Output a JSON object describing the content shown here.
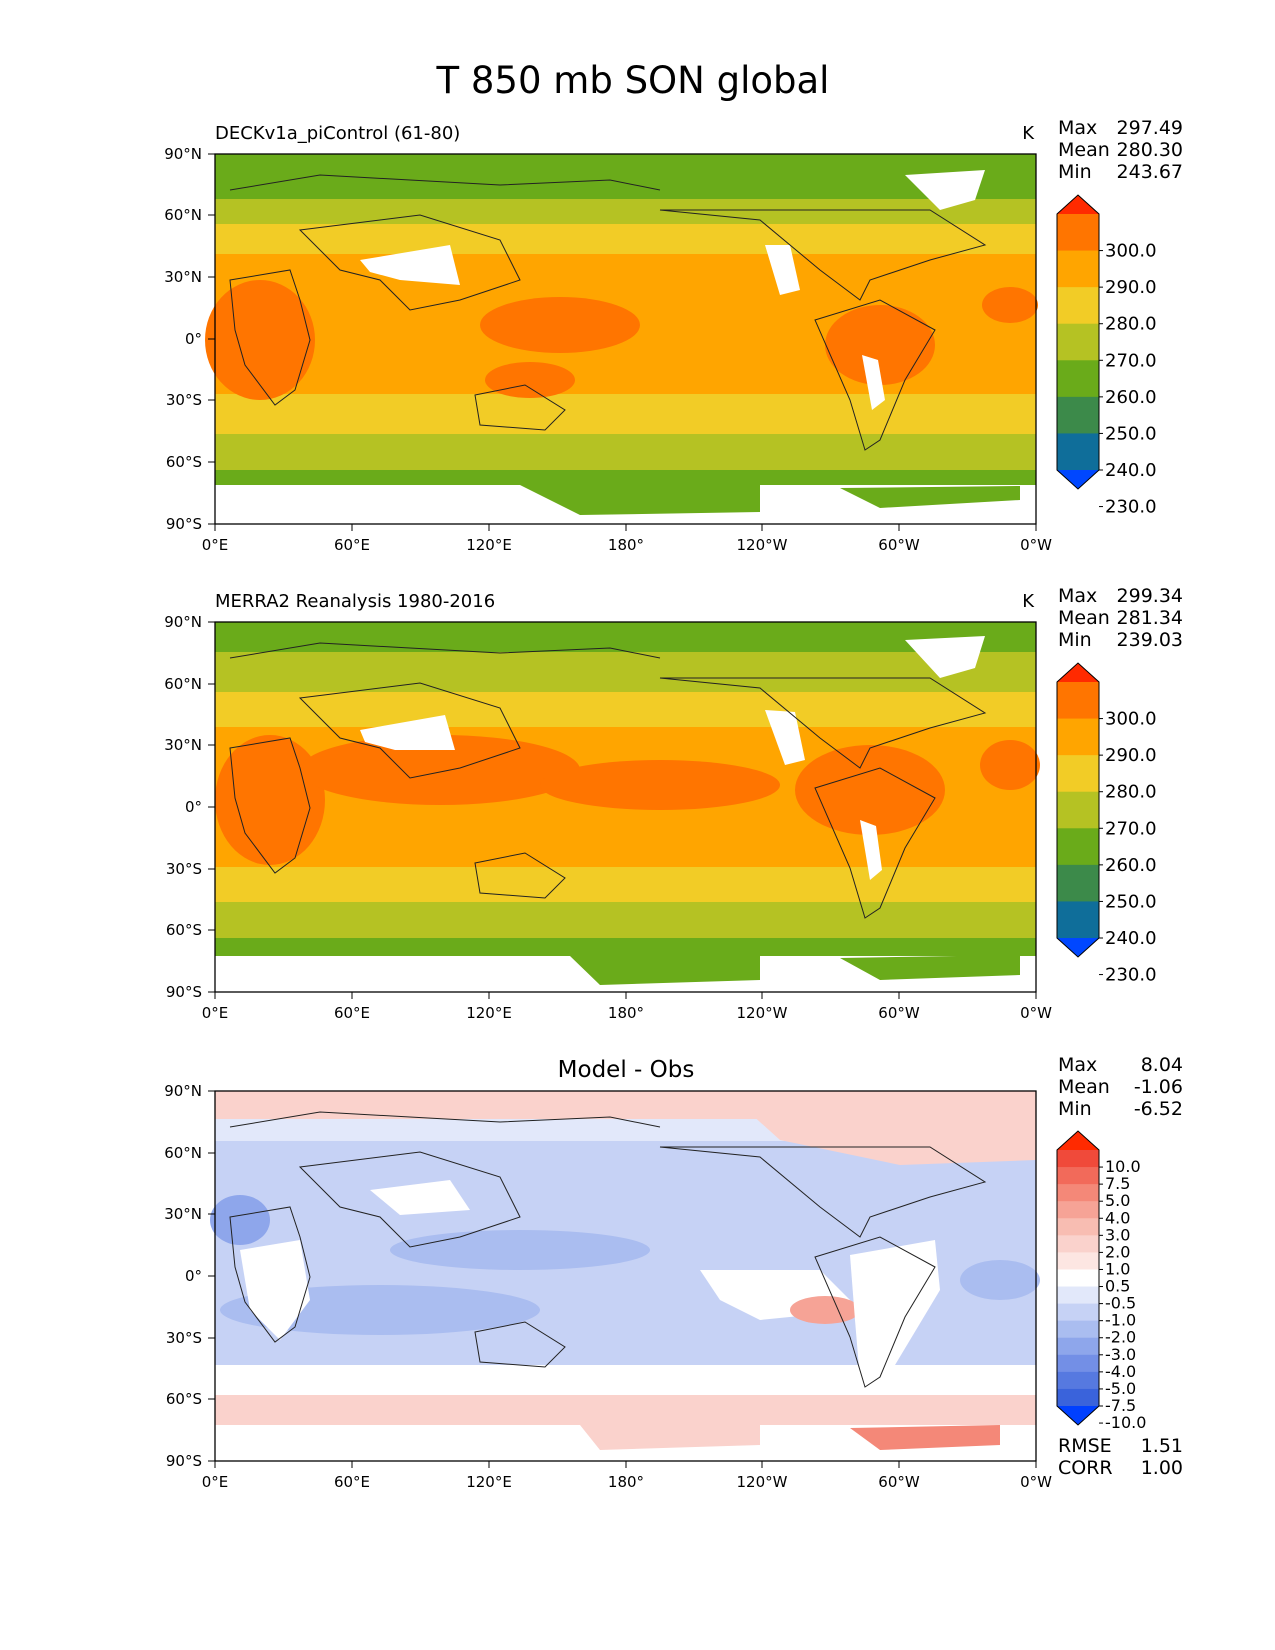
{
  "figure_title": "T 850 mb SON global",
  "lon_labels": [
    "0°E",
    "60°E",
    "120°E",
    "180°",
    "120°W",
    "60°W",
    "0°W"
  ],
  "lat_labels": [
    "90°N",
    "60°N",
    "30°N",
    "0°",
    "30°S",
    "60°S",
    "90°S"
  ],
  "abs_colorbar": {
    "levels": [
      "300.0",
      "290.0",
      "280.0",
      "270.0",
      "260.0",
      "250.0",
      "240.0",
      "230.0"
    ],
    "colors": [
      "#ff2a00",
      "#ff7500",
      "#ffa500",
      "#f2cc26",
      "#b5c223",
      "#6aab1a",
      "#3c8a4a",
      "#0f6e9a",
      "#0047ff"
    ]
  },
  "diff_colorbar": {
    "levels": [
      "10.0",
      "7.5",
      "5.0",
      "4.0",
      "3.0",
      "2.0",
      "1.0",
      "0.5",
      "-0.5",
      "-1.0",
      "-2.0",
      "-3.0",
      "-4.0",
      "-5.0",
      "-7.5",
      "-10.0"
    ],
    "colors": [
      "#ff2a00",
      "#f04a3a",
      "#f26a5a",
      "#f48878",
      "#f6a396",
      "#f8bdb2",
      "#fad2cc",
      "#fde6e2",
      "#ffffff",
      "#e2e8fa",
      "#c6d2f5",
      "#aabdf0",
      "#8ea6eb",
      "#738fe6",
      "#5679e0",
      "#3a63db",
      "#0040ff"
    ]
  },
  "chart_data": [
    {
      "type": "heatmap",
      "title": "DECKv1a_piControl (61-80)",
      "units": "K",
      "stats": {
        "max_label": "Max",
        "max": "297.49",
        "mean_label": "Mean",
        "mean": "280.30",
        "min_label": "Min",
        "min": "243.67"
      },
      "lon_range": [
        0,
        360
      ],
      "lat_range": [
        -90,
        90
      ],
      "zonal_bands": [
        {
          "lat": [
            70,
            90
          ],
          "value": 255
        },
        {
          "lat": [
            55,
            70
          ],
          "value": 265
        },
        {
          "lat": [
            40,
            55
          ],
          "value": 275
        },
        {
          "lat": [
            -20,
            40
          ],
          "value": 285
        },
        {
          "lat": [
            -40,
            -20
          ],
          "value": 275
        },
        {
          "lat": [
            -55,
            -40
          ],
          "value": 265
        },
        {
          "lat": [
            -70,
            -55
          ],
          "value": 255
        }
      ]
    },
    {
      "type": "heatmap",
      "title": "MERRA2 Reanalysis 1980-2016",
      "units": "K",
      "stats": {
        "max_label": "Max",
        "max": "299.34",
        "mean_label": "Mean",
        "mean": "281.34",
        "min_label": "Min",
        "min": "239.03"
      },
      "lon_range": [
        0,
        360
      ],
      "lat_range": [
        -90,
        90
      ],
      "zonal_bands": [
        {
          "lat": [
            70,
            90
          ],
          "value": 255
        },
        {
          "lat": [
            55,
            70
          ],
          "value": 265
        },
        {
          "lat": [
            40,
            55
          ],
          "value": 275
        },
        {
          "lat": [
            -20,
            40
          ],
          "value": 288
        },
        {
          "lat": [
            -40,
            -20
          ],
          "value": 275
        },
        {
          "lat": [
            -55,
            -40
          ],
          "value": 265
        },
        {
          "lat": [
            -70,
            -55
          ],
          "value": 255
        }
      ]
    },
    {
      "type": "heatmap",
      "title": "Model - Obs",
      "units": "",
      "stats": {
        "max_label": "Max",
        "max": "8.04",
        "mean_label": "Mean",
        "mean": "-1.06",
        "min_label": "Min",
        "min": "-6.52",
        "rmse_label": "RMSE",
        "rmse": "1.51",
        "corr_label": "CORR",
        "corr": "1.00"
      },
      "lon_range": [
        0,
        360
      ],
      "lat_range": [
        -90,
        90
      ],
      "zonal_bands": [
        {
          "lat": [
            75,
            90
          ],
          "value": 1.5
        },
        {
          "lat": [
            50,
            75
          ],
          "value": -1.5
        },
        {
          "lat": [
            -40,
            50
          ],
          "value": -2.2
        },
        {
          "lat": [
            -55,
            -40
          ],
          "value": 0.0
        },
        {
          "lat": [
            -75,
            -55
          ],
          "value": 1.5
        }
      ]
    }
  ]
}
